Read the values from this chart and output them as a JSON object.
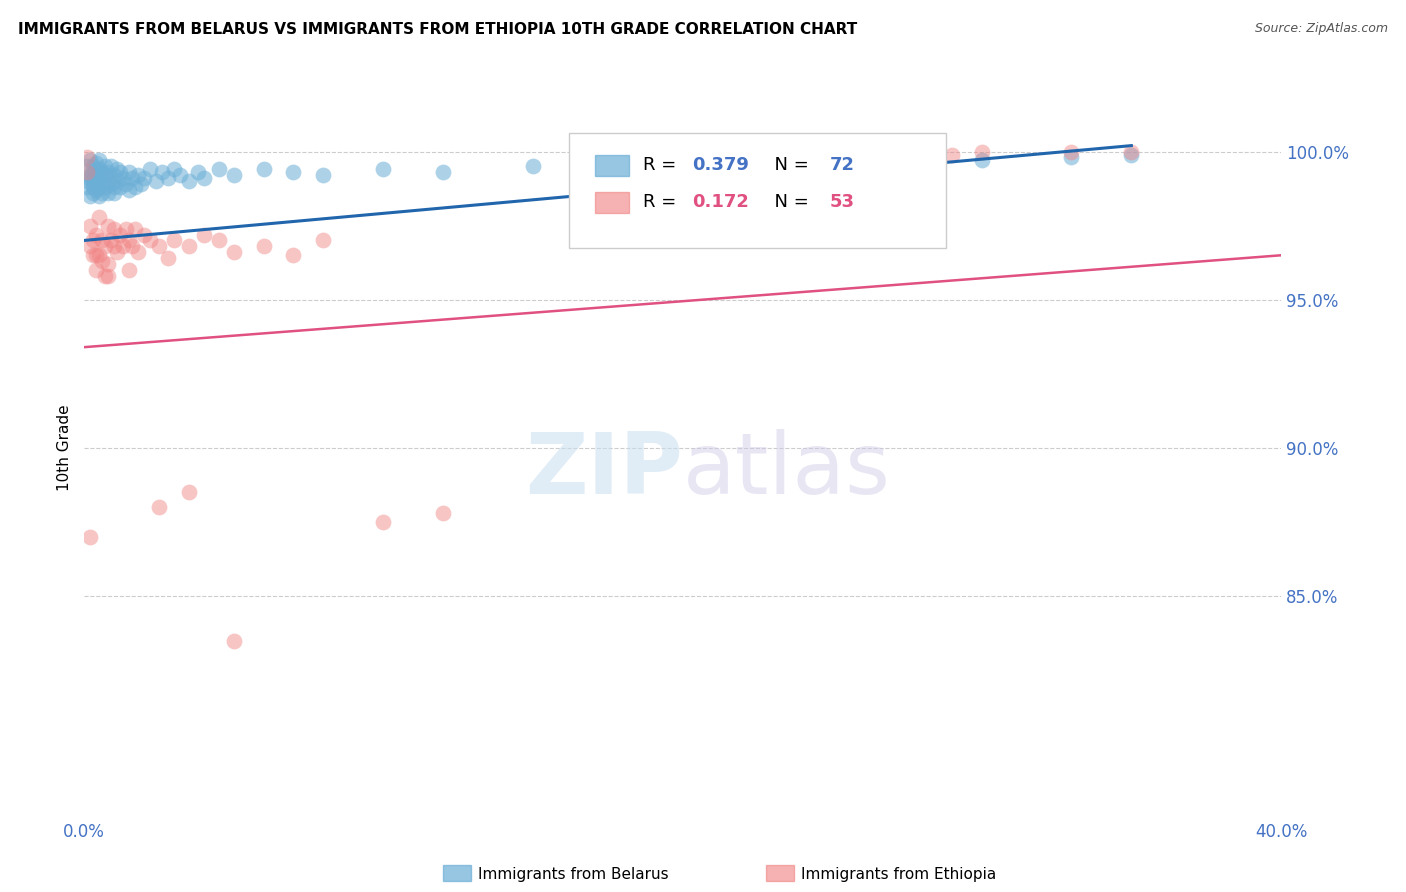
{
  "title": "IMMIGRANTS FROM BELARUS VS IMMIGRANTS FROM ETHIOPIA 10TH GRADE CORRELATION CHART",
  "source": "Source: ZipAtlas.com",
  "ylabel": "10th Grade",
  "ylabel_ticks": [
    "100.0%",
    "95.0%",
    "90.0%",
    "85.0%"
  ],
  "ylabel_tick_values": [
    1.0,
    0.95,
    0.9,
    0.85
  ],
  "xlim": [
    0.0,
    0.4
  ],
  "ylim": [
    0.775,
    1.025
  ],
  "watermark_zip": "ZIP",
  "watermark_atlas": "atlas",
  "legend_r1": "R = 0.379",
  "legend_n1": "N = 72",
  "legend_r2": "R = 0.172",
  "legend_n2": "N = 53",
  "legend_label1": "Immigrants from Belarus",
  "legend_label2": "Immigrants from Ethiopia",
  "color_blue": "#6baed6",
  "color_pink": "#f08080",
  "color_blue_line": "#2166ac",
  "color_pink_line": "#e05080",
  "color_axis_labels": "#4472c4",
  "color_grid": "#cccccc",
  "blue_x": [
    0.001,
    0.001,
    0.001,
    0.002,
    0.002,
    0.002,
    0.002,
    0.003,
    0.003,
    0.003,
    0.003,
    0.003,
    0.003,
    0.004,
    0.004,
    0.004,
    0.004,
    0.005,
    0.005,
    0.005,
    0.005,
    0.005,
    0.006,
    0.006,
    0.006,
    0.007,
    0.007,
    0.007,
    0.008,
    0.008,
    0.008,
    0.009,
    0.009,
    0.01,
    0.01,
    0.01,
    0.011,
    0.011,
    0.012,
    0.012,
    0.013,
    0.014,
    0.015,
    0.015,
    0.016,
    0.017,
    0.018,
    0.019,
    0.02,
    0.022,
    0.024,
    0.026,
    0.028,
    0.03,
    0.032,
    0.035,
    0.038,
    0.04,
    0.045,
    0.05,
    0.06,
    0.07,
    0.08,
    0.1,
    0.12,
    0.15,
    0.17,
    0.2,
    0.25,
    0.3,
    0.33,
    0.35
  ],
  "blue_y": [
    0.99,
    0.988,
    0.995,
    0.992,
    0.985,
    0.991,
    0.997,
    0.989,
    0.993,
    0.986,
    0.995,
    0.988,
    0.991,
    0.987,
    0.993,
    0.99,
    0.996,
    0.985,
    0.991,
    0.988,
    0.994,
    0.997,
    0.989,
    0.993,
    0.986,
    0.992,
    0.988,
    0.995,
    0.99,
    0.986,
    0.993,
    0.989,
    0.995,
    0.988,
    0.992,
    0.986,
    0.99,
    0.994,
    0.988,
    0.993,
    0.991,
    0.989,
    0.993,
    0.987,
    0.991,
    0.988,
    0.992,
    0.989,
    0.991,
    0.994,
    0.99,
    0.993,
    0.991,
    0.994,
    0.992,
    0.99,
    0.993,
    0.991,
    0.994,
    0.992,
    0.994,
    0.993,
    0.992,
    0.994,
    0.993,
    0.995,
    0.996,
    0.994,
    0.996,
    0.997,
    0.998,
    0.999
  ],
  "pink_x": [
    0.001,
    0.001,
    0.002,
    0.002,
    0.003,
    0.003,
    0.004,
    0.004,
    0.005,
    0.005,
    0.006,
    0.006,
    0.007,
    0.007,
    0.008,
    0.008,
    0.009,
    0.01,
    0.01,
    0.011,
    0.012,
    0.013,
    0.014,
    0.015,
    0.016,
    0.017,
    0.018,
    0.02,
    0.022,
    0.025,
    0.028,
    0.03,
    0.035,
    0.04,
    0.045,
    0.05,
    0.06,
    0.07,
    0.08,
    0.1,
    0.12,
    0.27,
    0.29,
    0.3,
    0.33,
    0.35,
    0.002,
    0.004,
    0.008,
    0.015,
    0.025,
    0.035,
    0.05
  ],
  "pink_y": [
    0.993,
    0.998,
    0.975,
    0.968,
    0.97,
    0.965,
    0.972,
    0.96,
    0.978,
    0.965,
    0.97,
    0.963,
    0.968,
    0.958,
    0.975,
    0.962,
    0.97,
    0.968,
    0.974,
    0.966,
    0.972,
    0.968,
    0.974,
    0.97,
    0.968,
    0.974,
    0.966,
    0.972,
    0.97,
    0.968,
    0.964,
    0.97,
    0.968,
    0.972,
    0.97,
    0.966,
    0.968,
    0.965,
    0.97,
    0.875,
    0.878,
    0.999,
    0.999,
    1.0,
    1.0,
    1.0,
    0.87,
    0.965,
    0.958,
    0.96,
    0.88,
    0.885,
    0.835
  ],
  "blue_line_x": [
    0.0,
    0.35
  ],
  "blue_line_y": [
    0.97,
    1.002
  ],
  "pink_line_x": [
    0.0,
    0.4
  ],
  "pink_line_y": [
    0.934,
    0.965
  ]
}
